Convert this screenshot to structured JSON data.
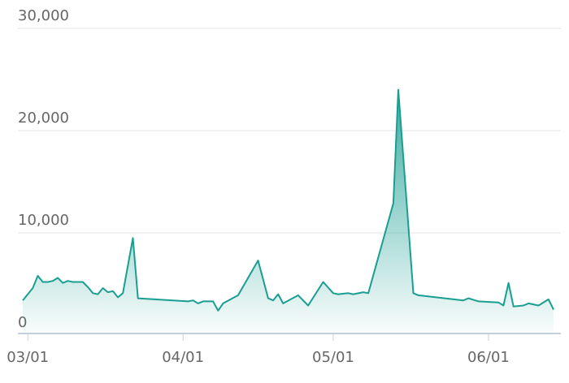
{
  "chart_data": {
    "type": "area",
    "x": [
      "02/28",
      "03/02",
      "03/03",
      "03/04",
      "03/05",
      "03/06",
      "03/07",
      "03/08",
      "03/09",
      "03/10",
      "03/12",
      "03/13",
      "03/14",
      "03/15",
      "03/16",
      "03/17",
      "03/18",
      "03/19",
      "03/20",
      "03/22",
      "03/23",
      "04/02",
      "04/03",
      "04/04",
      "04/05",
      "04/07",
      "04/08",
      "04/09",
      "04/12",
      "04/16",
      "04/18",
      "04/19",
      "04/20",
      "04/21",
      "04/24",
      "04/26",
      "04/29",
      "05/01",
      "05/02",
      "05/04",
      "05/05",
      "05/07",
      "05/08",
      "05/13",
      "05/14",
      "05/17",
      "05/18",
      "05/27",
      "05/28",
      "05/30",
      "06/03",
      "06/04",
      "06/05",
      "06/06",
      "06/08",
      "06/09",
      "06/11",
      "06/13",
      "06/14"
    ],
    "values": [
      3400,
      4600,
      5800,
      5200,
      5200,
      5300,
      5600,
      5100,
      5300,
      5200,
      5200,
      4700,
      4100,
      4000,
      4600,
      4200,
      4300,
      3700,
      4100,
      9500,
      3600,
      3300,
      3400,
      3100,
      3300,
      3300,
      2400,
      3100,
      3900,
      7300,
      3600,
      3400,
      4000,
      3100,
      3900,
      2900,
      5200,
      4100,
      4000,
      4100,
      4000,
      4200,
      4100,
      12900,
      24000,
      4100,
      3900,
      3400,
      3600,
      3300,
      3200,
      2900,
      5100,
      2800,
      2900,
      3100,
      2900,
      3500,
      2500
    ],
    "color": "#1a9e92",
    "xlim": [
      "02/28",
      "06/14"
    ],
    "xticks": [
      "03/01",
      "04/01",
      "05/01",
      "06/01"
    ],
    "ylim": [
      0,
      30000
    ],
    "yticks": [
      0,
      {
        "value": 10000,
        "label": "10,000"
      },
      {
        "value": 20000,
        "label": "20,000"
      },
      {
        "value": 30000,
        "label": "30,000"
      }
    ],
    "grid": true
  }
}
